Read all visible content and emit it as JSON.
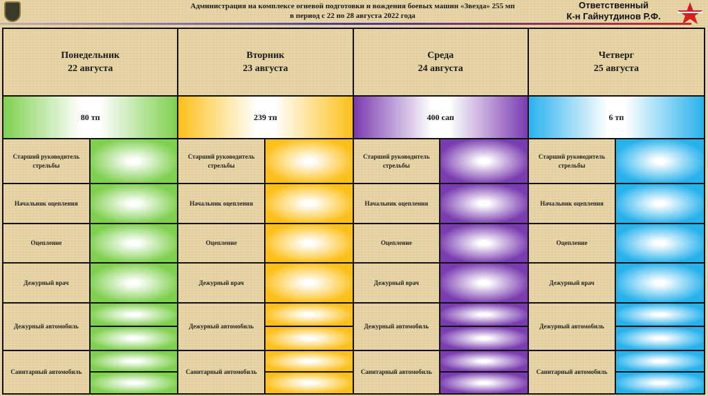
{
  "header": {
    "title_line1": "Администрация на комплексе огневой подготовки и вождения боевых машин «Звезда» 255 мп",
    "title_line2": "в период с 22 по 28 августа 2022 года",
    "responsible_label": "Ответственный",
    "responsible_name": "К-н Гайнутдинов Р.Ф."
  },
  "row_labels": [
    "Старший руководитель стрельбы",
    "Начальник оцепления",
    "Оцепление",
    "Дежурный врач",
    "Дежурный автомобиль",
    "Санитарный автомобиль"
  ],
  "days": [
    {
      "day": "Понедельник",
      "date": "22 августа",
      "unit": "80 тп",
      "color": "#7fd04f"
    },
    {
      "day": "Вторник",
      "date": "23 августа",
      "unit": "239 тп",
      "color": "#fdc01a"
    },
    {
      "day": "Среда",
      "date": "24 августа",
      "unit": "400 сап",
      "color": "#7a3cb0"
    },
    {
      "day": "Четверг",
      "date": "25 августа",
      "unit": "6 тп",
      "color": "#28b2ec"
    }
  ]
}
